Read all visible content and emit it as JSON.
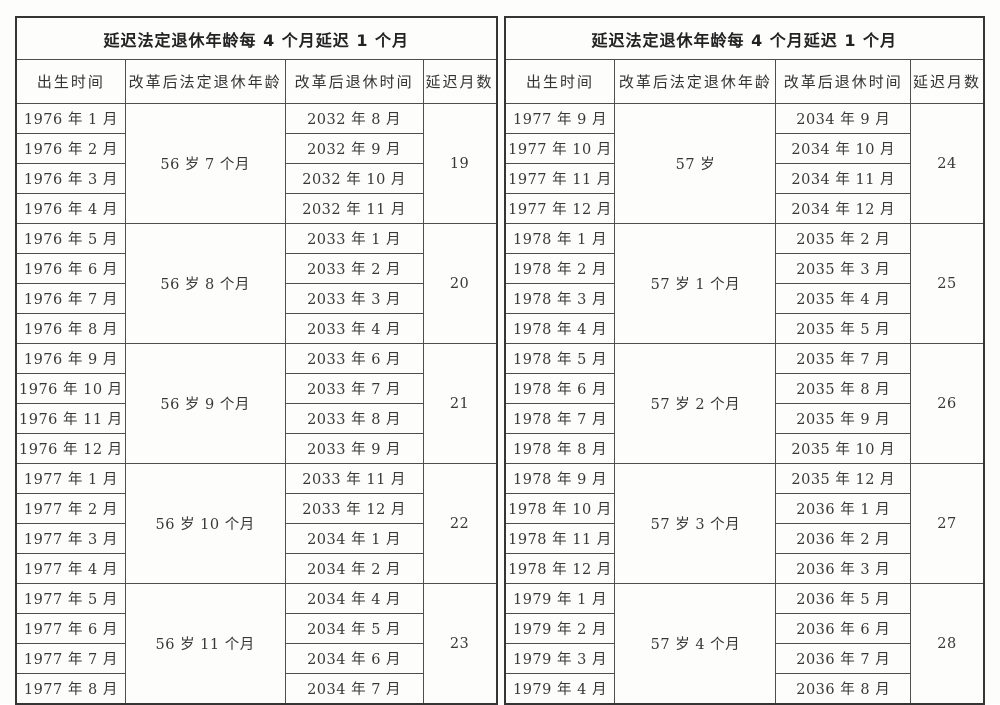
{
  "page": {
    "description_colors": {
      "border_outer": "#353535",
      "border_inner": "#4e4e4e",
      "background": "#fdfdfc",
      "text": "#383838"
    }
  },
  "tables": [
    {
      "title": "延迟法定退休年龄每 4 个月延迟 1 个月",
      "headers": [
        "出生时间",
        "改革后法定退休年龄",
        "改革后退休时间",
        "延迟月数"
      ],
      "groups": [
        {
          "birth_months": [
            "1976 年 1 月",
            "1976 年 2 月",
            "1976 年 3 月",
            "1976 年 4 月"
          ],
          "retirement_age": "56 岁 7 个月",
          "retirement_months": [
            "2032 年 8 月",
            "2032 年 9 月",
            "2032 年 10 月",
            "2032 年 11 月"
          ],
          "delay_months": "19"
        },
        {
          "birth_months": [
            "1976 年 5 月",
            "1976 年 6 月",
            "1976 年 7 月",
            "1976 年 8 月"
          ],
          "retirement_age": "56 岁 8 个月",
          "retirement_months": [
            "2033 年 1 月",
            "2033 年 2 月",
            "2033 年 3 月",
            "2033 年 4 月"
          ],
          "delay_months": "20"
        },
        {
          "birth_months": [
            "1976 年 9 月",
            "1976 年 10 月",
            "1976 年 11 月",
            "1976 年 12 月"
          ],
          "retirement_age": "56 岁 9 个月",
          "retirement_months": [
            "2033 年 6 月",
            "2033 年 7 月",
            "2033 年 8 月",
            "2033 年 9 月"
          ],
          "delay_months": "21"
        },
        {
          "birth_months": [
            "1977 年 1 月",
            "1977 年 2 月",
            "1977 年 3 月",
            "1977 年 4 月"
          ],
          "retirement_age": "56 岁 10 个月",
          "retirement_months": [
            "2033 年 11 月",
            "2033 年 12 月",
            "2034 年 1 月",
            "2034 年 2 月"
          ],
          "delay_months": "22"
        },
        {
          "birth_months": [
            "1977 年 5 月",
            "1977 年 6 月",
            "1977 年 7 月",
            "1977 年 8 月"
          ],
          "retirement_age": "56 岁 11 个月",
          "retirement_months": [
            "2034 年 4 月",
            "2034 年 5 月",
            "2034 年 6 月",
            "2034 年 7 月"
          ],
          "delay_months": "23"
        }
      ]
    },
    {
      "title": "延迟法定退休年龄每 4 个月延迟 1 个月",
      "headers": [
        "出生时间",
        "改革后法定退休年龄",
        "改革后退休时间",
        "延迟月数"
      ],
      "groups": [
        {
          "birth_months": [
            "1977 年 9 月",
            "1977 年 10 月",
            "1977 年 11 月",
            "1977 年 12 月"
          ],
          "retirement_age": "57 岁",
          "retirement_months": [
            "2034 年 9 月",
            "2034 年 10 月",
            "2034 年 11 月",
            "2034 年 12 月"
          ],
          "delay_months": "24"
        },
        {
          "birth_months": [
            "1978 年 1 月",
            "1978 年 2 月",
            "1978 年 3 月",
            "1978 年 4 月"
          ],
          "retirement_age": "57 岁 1 个月",
          "retirement_months": [
            "2035 年 2 月",
            "2035 年 3 月",
            "2035 年 4 月",
            "2035 年 5 月"
          ],
          "delay_months": "25"
        },
        {
          "birth_months": [
            "1978 年 5 月",
            "1978 年 6 月",
            "1978 年 7 月",
            "1978 年 8 月"
          ],
          "retirement_age": "57 岁 2 个月",
          "retirement_months": [
            "2035 年 7 月",
            "2035 年 8 月",
            "2035 年 9 月",
            "2035 年 10 月"
          ],
          "delay_months": "26"
        },
        {
          "birth_months": [
            "1978 年 9 月",
            "1978 年 10 月",
            "1978 年 11 月",
            "1978 年 12 月"
          ],
          "retirement_age": "57 岁 3 个月",
          "retirement_months": [
            "2035 年 12 月",
            "2036 年 1 月",
            "2036 年 2 月",
            "2036 年 3 月"
          ],
          "delay_months": "27"
        },
        {
          "birth_months": [
            "1979 年 1 月",
            "1979 年 2 月",
            "1979 年 3 月",
            "1979 年 4 月"
          ],
          "retirement_age": "57 岁 4 个月",
          "retirement_months": [
            "2036 年 5 月",
            "2036 年 6 月",
            "2036 年 7 月",
            "2036 年 8 月"
          ],
          "delay_months": "28"
        }
      ]
    }
  ]
}
